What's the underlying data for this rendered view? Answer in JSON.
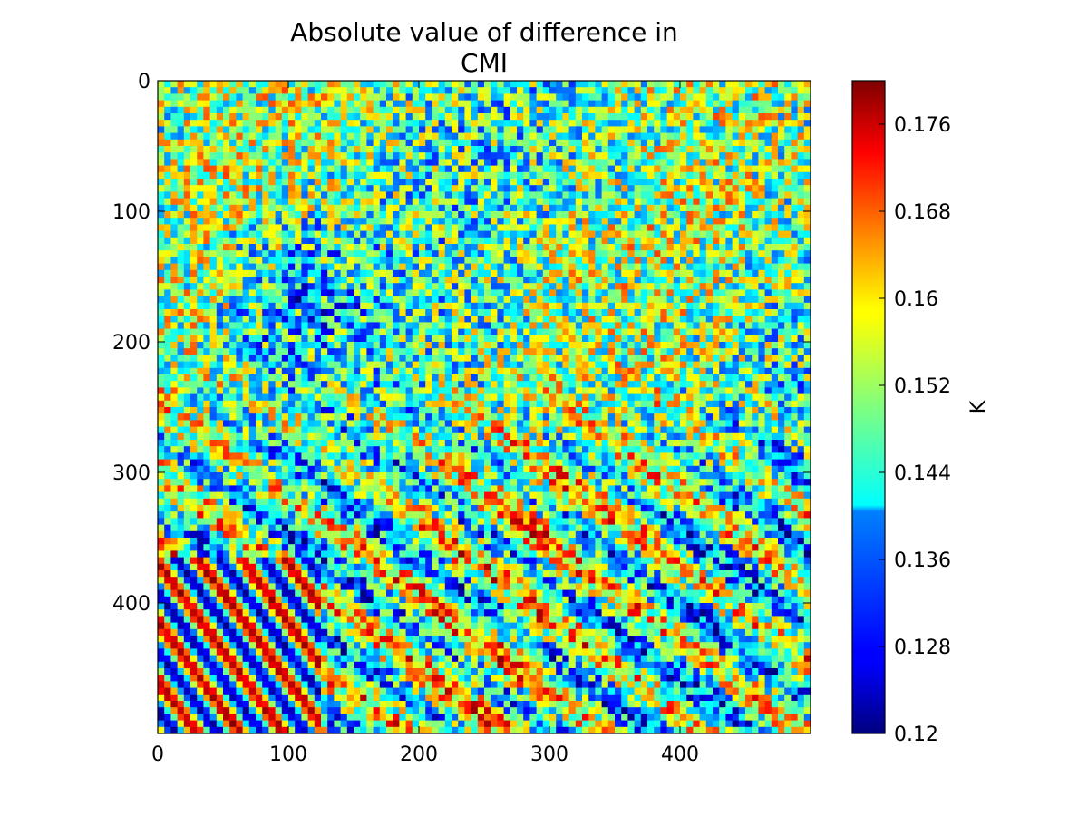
{
  "chart_data": {
    "type": "heatmap",
    "title_lines": [
      "Absolute value of difference in",
      "CMI"
    ],
    "xlabel": "",
    "ylabel": "",
    "x_range": [
      0,
      500
    ],
    "y_range": [
      0,
      500
    ],
    "y_inverted": true,
    "x_ticks": [
      "0",
      "100",
      "200",
      "300",
      "400"
    ],
    "y_ticks": [
      "0",
      "100",
      "200",
      "300",
      "400"
    ],
    "colormap": "jet",
    "colorbar": {
      "label": "K",
      "range": [
        0.12,
        0.18
      ],
      "ticks": [
        "0.12",
        "0.128",
        "0.136",
        "0.144",
        "0.152",
        "0.16",
        "0.168",
        "0.176"
      ]
    },
    "grid": false
  }
}
